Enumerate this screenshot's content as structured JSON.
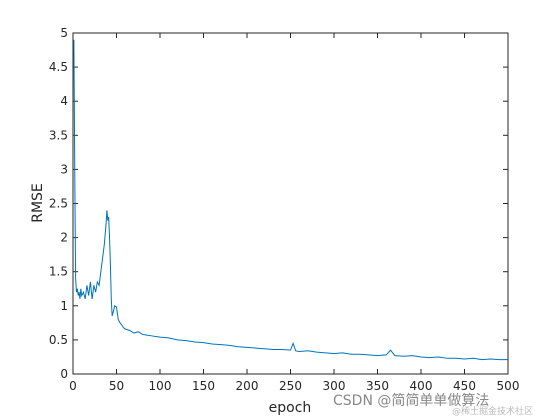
{
  "chart_data": {
    "type": "line",
    "xlabel": "epoch",
    "ylabel": "RMSE",
    "color": "#0072bd",
    "x": [
      1,
      2,
      3,
      4,
      5,
      6,
      7,
      8,
      9,
      10,
      12,
      14,
      16,
      18,
      20,
      22,
      24,
      26,
      28,
      30,
      32,
      34,
      36,
      38,
      39,
      40,
      41,
      42,
      43,
      44,
      45,
      46,
      47,
      48,
      50,
      52,
      54,
      56,
      58,
      60,
      65,
      70,
      75,
      80,
      85,
      90,
      95,
      100,
      110,
      120,
      130,
      140,
      150,
      160,
      170,
      180,
      190,
      200,
      210,
      220,
      230,
      240,
      250,
      253,
      256,
      260,
      270,
      280,
      290,
      300,
      310,
      320,
      330,
      340,
      350,
      360,
      365,
      370,
      380,
      390,
      400,
      410,
      420,
      430,
      440,
      450,
      460,
      470,
      480,
      490,
      500
    ],
    "values": [
      4.9,
      3.0,
      1.4,
      1.2,
      1.25,
      1.15,
      1.2,
      1.1,
      1.25,
      1.15,
      1.2,
      1.1,
      1.3,
      1.15,
      1.35,
      1.1,
      1.3,
      1.2,
      1.35,
      1.3,
      1.5,
      1.7,
      1.9,
      2.2,
      2.4,
      2.25,
      2.3,
      2.0,
      1.6,
      1.1,
      0.85,
      0.9,
      0.95,
      1.0,
      0.98,
      0.8,
      0.75,
      0.72,
      0.68,
      0.66,
      0.64,
      0.6,
      0.62,
      0.58,
      0.57,
      0.56,
      0.55,
      0.54,
      0.53,
      0.5,
      0.49,
      0.47,
      0.46,
      0.44,
      0.43,
      0.42,
      0.4,
      0.39,
      0.38,
      0.37,
      0.36,
      0.36,
      0.35,
      0.45,
      0.34,
      0.33,
      0.34,
      0.32,
      0.31,
      0.3,
      0.31,
      0.29,
      0.29,
      0.28,
      0.27,
      0.28,
      0.35,
      0.27,
      0.26,
      0.27,
      0.25,
      0.24,
      0.25,
      0.23,
      0.23,
      0.22,
      0.23,
      0.21,
      0.22,
      0.21,
      0.21
    ],
    "xlim": [
      0,
      500
    ],
    "xticks": [
      0,
      50,
      100,
      150,
      200,
      250,
      300,
      350,
      400,
      450,
      500
    ],
    "ylim": [
      0,
      5
    ],
    "yticks": [
      0,
      0.5,
      1,
      1.5,
      2,
      2.5,
      3,
      3.5,
      4,
      4.5,
      5
    ],
    "watermark": "CSDN @简简单单做算法",
    "watermark2": "@稀土掘金技术社区"
  }
}
